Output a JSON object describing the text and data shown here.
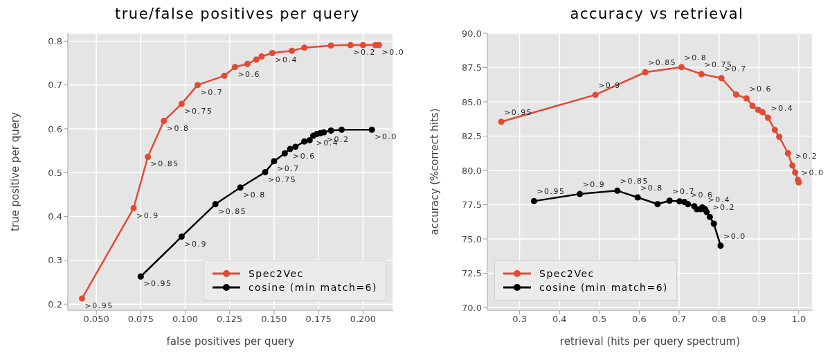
{
  "chart_data": [
    {
      "type": "line",
      "title": "true/false positives per query",
      "xlabel": "false positives per query",
      "ylabel": "true positive per query",
      "xlim": [
        0.034,
        0.217
      ],
      "ylim": [
        0.186,
        0.818
      ],
      "xticks": [
        {
          "value": 0.05,
          "label": "0.050"
        },
        {
          "value": 0.075,
          "label": "0.075"
        },
        {
          "value": 0.1,
          "label": "0.100"
        },
        {
          "value": 0.125,
          "label": "0.125"
        },
        {
          "value": 0.15,
          "label": "0.150"
        },
        {
          "value": 0.175,
          "label": "0.175"
        },
        {
          "value": 0.2,
          "label": "0.200"
        }
      ],
      "yticks": [
        0.2,
        0.3,
        0.4,
        0.5,
        0.6,
        0.7,
        0.8
      ],
      "grid": true,
      "legend": "bottom right",
      "marker": "circle",
      "series": [
        {
          "name": "Spec2Vec",
          "color": "#e24a33",
          "x": [
            0.042,
            0.071,
            0.079,
            0.088,
            0.098,
            0.107,
            0.122,
            0.128,
            0.135,
            0.14,
            0.143,
            0.149,
            0.16,
            0.167,
            0.182,
            0.193,
            0.2,
            0.207,
            0.209
          ],
          "values": [
            0.213,
            0.419,
            0.536,
            0.618,
            0.657,
            0.7,
            0.721,
            0.741,
            0.748,
            0.758,
            0.765,
            0.773,
            0.778,
            0.785,
            0.79,
            0.791,
            0.791,
            0.791,
            0.791
          ],
          "value_labels": [
            ">0.95",
            ">0.9",
            ">0.85",
            ">0.8",
            ">0.75",
            ">0.7",
            null,
            ">0.6",
            null,
            null,
            null,
            ">0.4",
            null,
            null,
            null,
            ">0.2",
            null,
            null,
            ">0.0"
          ]
        },
        {
          "name": "cosine (min match=6)",
          "color": "#000000",
          "x": [
            0.075,
            0.098,
            0.117,
            0.131,
            0.145,
            0.15,
            0.156,
            0.159,
            0.162,
            0.167,
            0.17,
            0.172,
            0.174,
            0.176,
            0.178,
            0.182,
            0.188,
            0.205
          ],
          "values": [
            0.263,
            0.354,
            0.428,
            0.466,
            0.501,
            0.526,
            0.544,
            0.554,
            0.559,
            0.571,
            0.574,
            0.584,
            0.588,
            0.59,
            0.592,
            0.596,
            0.598,
            0.598
          ],
          "value_labels": [
            ">0.95",
            ">0.9",
            ">0.85",
            ">0.8",
            ">0.75",
            ">0.7",
            null,
            ">0.6",
            null,
            null,
            null,
            ">0.4",
            null,
            null,
            ">0.2",
            null,
            null,
            ">0.0"
          ]
        }
      ]
    },
    {
      "type": "line",
      "title": "accuracy vs retrieval",
      "xlabel": "retrieval (hits per query  spectrum)",
      "ylabel": "accuracy  (%correct hits)",
      "xlim": [
        0.219,
        1.035
      ],
      "ylim": [
        69.8,
        90
      ],
      "xticks": [
        0.3,
        0.4,
        0.5,
        0.6,
        0.7,
        0.8,
        0.9,
        {
          "value": 1,
          "label": "1.0"
        }
      ],
      "yticks": [
        {
          "value": 70,
          "label": "70.0"
        },
        72.5,
        {
          "value": 75,
          "label": "75.0"
        },
        77.5,
        {
          "value": 80,
          "label": "80.0"
        },
        82.5,
        {
          "value": 85,
          "label": "85.0"
        },
        87.5,
        {
          "value": 90,
          "label": "90.0"
        }
      ],
      "grid": true,
      "legend": "bottom left",
      "marker": "circle",
      "series": [
        {
          "name": "Spec2Vec",
          "color": "#e24a33",
          "x": [
            0.254,
            0.49,
            0.615,
            0.706,
            0.756,
            0.806,
            0.843,
            0.869,
            0.884,
            0.898,
            0.909,
            0.923,
            0.94,
            0.951,
            0.973,
            0.984,
            0.991,
            0.998,
            1.0
          ],
          "values": [
            83.55,
            85.51,
            87.16,
            87.53,
            87.02,
            86.73,
            85.53,
            85.25,
            84.71,
            84.42,
            84.25,
            83.84,
            82.95,
            82.45,
            81.25,
            80.36,
            79.85,
            79.31,
            79.13
          ],
          "value_labels": [
            ">0.95",
            ">0.9",
            ">0.85",
            ">0.8",
            ">0.75",
            ">0.7",
            null,
            ">0.6",
            null,
            null,
            null,
            ">0.4",
            null,
            null,
            null,
            ">0.2",
            null,
            null,
            ">0.0"
          ]
        },
        {
          "name": "cosine (min match=6)",
          "color": "#000000",
          "x": [
            0.336,
            0.451,
            0.545,
            0.596,
            0.646,
            0.676,
            0.701,
            0.713,
            0.722,
            0.738,
            0.744,
            0.754,
            0.758,
            0.765,
            0.769,
            0.777,
            0.787,
            0.804
          ],
          "values": [
            77.76,
            78.28,
            78.52,
            78.03,
            77.54,
            77.79,
            77.74,
            77.7,
            77.54,
            77.39,
            77.17,
            77.17,
            77.3,
            77.17,
            76.97,
            76.61,
            76.11,
            74.51
          ],
          "value_labels": [
            ">0.95",
            ">0.9",
            ">0.85",
            ">0.8",
            null,
            ">0.7",
            null,
            null,
            ">0.6",
            null,
            null,
            null,
            null,
            ">0.4",
            null,
            ">0.2",
            null,
            ">0.0"
          ]
        }
      ]
    }
  ]
}
